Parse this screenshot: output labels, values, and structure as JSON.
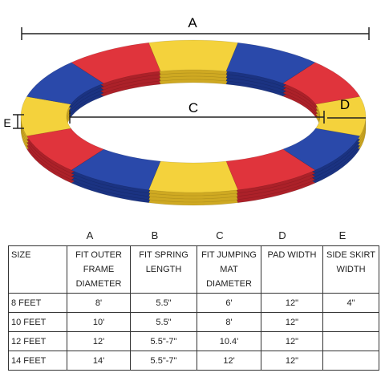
{
  "diagram": {
    "labels": {
      "a": "A",
      "c": "C",
      "d": "D",
      "e": "E"
    }
  },
  "table": {
    "letters": [
      "A",
      "B",
      "C",
      "D",
      "E"
    ],
    "header": [
      "SIZE",
      "FIT OUTER FRAME DIAMETER",
      "FIT SPRING LENGTH",
      "FIT JUMPING MAT DIAMETER",
      "PAD WIDTH",
      "SIDE SKIRT WIDTH"
    ],
    "rows": [
      [
        "8 FEET",
        "8'",
        "5.5\"",
        "6'",
        "12\"",
        "4\""
      ],
      [
        "10 FEET",
        "10'",
        "5.5\"",
        "8'",
        "12\""
      ],
      [
        "12 FEET",
        "12'",
        "5.5\"-7\"",
        "10.4'",
        "12\""
      ],
      [
        "14 FEET",
        "14'",
        "5.5\"-7\"",
        "12'",
        "12\""
      ]
    ]
  }
}
